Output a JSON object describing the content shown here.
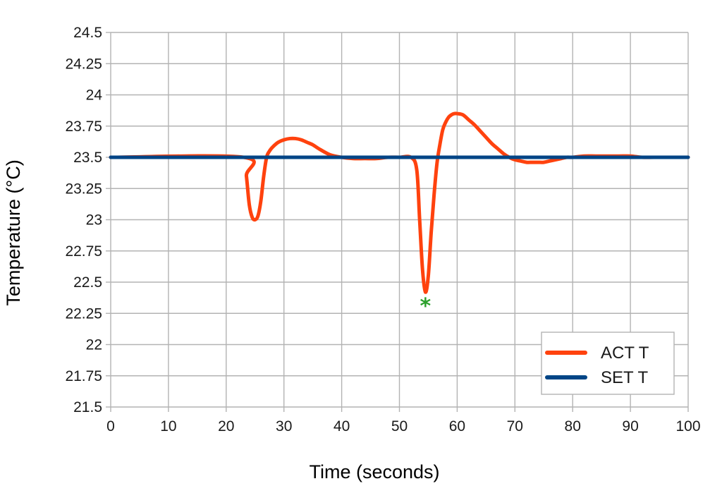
{
  "chart_data": {
    "type": "line",
    "title": "",
    "xlabel": "Time (seconds)",
    "ylabel": "Temperature (°C)",
    "xlim": [
      0,
      100
    ],
    "ylim": [
      21.5,
      24.5
    ],
    "x_ticks": [
      0,
      10,
      20,
      30,
      40,
      50,
      60,
      70,
      80,
      90,
      100
    ],
    "x_tick_labels": [
      "0",
      "10",
      "20",
      "30",
      "40",
      "50",
      "60",
      "70",
      "80",
      "90",
      "100"
    ],
    "y_ticks": [
      21.5,
      21.75,
      22,
      22.25,
      22.5,
      22.75,
      23,
      23.25,
      23.5,
      23.75,
      24,
      24.25,
      24.5
    ],
    "y_tick_labels": [
      "21.5",
      "21.75",
      "22",
      "22.25",
      "22.5",
      "22.75",
      "23",
      "23.25",
      "23.5",
      "23.75",
      "24",
      "24.25",
      "24.5"
    ],
    "grid": true,
    "legend_position": "bottom-right",
    "series": [
      {
        "name": "ACT T",
        "color": "#ff420e",
        "x": [
          0,
          23,
          23.5,
          24,
          24.5,
          25,
          25.5,
          26,
          26.5,
          27,
          27.5,
          28,
          29,
          30,
          31,
          32,
          33,
          34,
          35,
          36,
          38,
          40,
          42,
          44,
          46,
          48,
          50,
          52,
          53,
          53.5,
          54,
          54.5,
          55,
          55.5,
          56,
          56.5,
          57,
          57.5,
          58,
          58.5,
          59,
          59.5,
          60,
          61,
          62,
          63,
          64,
          65,
          66,
          67,
          68,
          69,
          70,
          71,
          72,
          73,
          74,
          75,
          76,
          77,
          78,
          79,
          80,
          82,
          84,
          86,
          88,
          90,
          92,
          94,
          96,
          98,
          100
        ],
        "y": [
          23.5,
          23.5,
          23.35,
          23.12,
          23.02,
          23.0,
          23.03,
          23.15,
          23.35,
          23.5,
          23.55,
          23.58,
          23.62,
          23.64,
          23.65,
          23.65,
          23.64,
          23.62,
          23.6,
          23.57,
          23.52,
          23.5,
          23.49,
          23.49,
          23.49,
          23.5,
          23.5,
          23.5,
          23.4,
          23.0,
          22.6,
          22.42,
          22.55,
          22.9,
          23.2,
          23.45,
          23.6,
          23.72,
          23.78,
          23.82,
          23.84,
          23.85,
          23.85,
          23.84,
          23.8,
          23.76,
          23.71,
          23.66,
          23.61,
          23.57,
          23.53,
          23.5,
          23.48,
          23.47,
          23.46,
          23.46,
          23.46,
          23.46,
          23.47,
          23.48,
          23.49,
          23.5,
          23.5,
          23.51,
          23.51,
          23.51,
          23.51,
          23.51,
          23.5,
          23.5,
          23.5,
          23.5,
          23.5
        ]
      },
      {
        "name": "SET T",
        "color": "#004586",
        "x": [
          0,
          100
        ],
        "y": [
          23.5,
          23.5
        ]
      }
    ],
    "annotations": [
      {
        "text": "*",
        "x": 54.5,
        "y": 22.33,
        "color": "#2ca02c"
      }
    ]
  }
}
